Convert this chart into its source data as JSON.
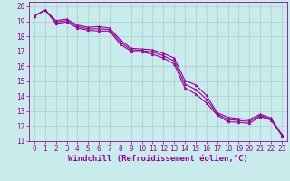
{
  "xlabel": "Windchill (Refroidissement éolien,°C)",
  "bg_color": "#c8ecec",
  "line_color": "#990099",
  "grid_color": "#aacccc",
  "xlim": [
    -0.5,
    23.5
  ],
  "ylim": [
    11,
    20.3
  ],
  "xticks": [
    0,
    1,
    2,
    3,
    4,
    5,
    6,
    7,
    8,
    9,
    10,
    11,
    12,
    13,
    14,
    15,
    16,
    17,
    18,
    19,
    20,
    21,
    22,
    23
  ],
  "yticks": [
    11,
    12,
    13,
    14,
    15,
    16,
    17,
    18,
    19,
    20
  ],
  "line1": [
    19.35,
    19.75,
    19.05,
    19.15,
    18.75,
    18.6,
    18.65,
    18.55,
    17.75,
    17.2,
    17.15,
    17.1,
    16.85,
    16.55,
    15.05,
    14.75,
    14.05,
    12.9,
    12.6,
    12.5,
    12.45,
    12.8,
    12.55,
    11.45
  ],
  "line2": [
    19.35,
    19.75,
    18.95,
    19.05,
    18.65,
    18.5,
    18.5,
    18.45,
    17.6,
    17.1,
    17.05,
    16.95,
    16.7,
    16.35,
    14.8,
    14.45,
    13.8,
    12.82,
    12.45,
    12.38,
    12.32,
    12.72,
    12.48,
    11.42
  ],
  "line3": [
    19.35,
    19.75,
    18.85,
    18.95,
    18.55,
    18.4,
    18.35,
    18.35,
    17.45,
    17.0,
    16.95,
    16.8,
    16.55,
    16.15,
    14.55,
    14.15,
    13.55,
    12.74,
    12.3,
    12.26,
    12.19,
    12.64,
    12.41,
    11.39
  ],
  "tick_fontsize": 5.5,
  "label_fontsize": 6.5
}
